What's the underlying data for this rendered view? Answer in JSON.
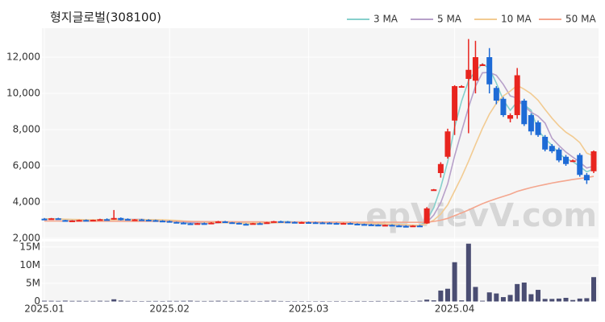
{
  "chart_data": {
    "type": "candlestick",
    "title": "형지글로벌(308100)",
    "watermark": "epVievV.com",
    "categories": [
      "2025.01",
      null,
      null,
      null,
      null,
      null,
      null,
      null,
      null,
      null,
      null,
      null,
      null,
      null,
      null,
      null,
      null,
      null,
      "2025.02",
      null,
      null,
      null,
      null,
      null,
      null,
      null,
      null,
      null,
      null,
      null,
      null,
      null,
      null,
      null,
      null,
      null,
      null,
      null,
      "2025.03",
      null,
      null,
      null,
      null,
      null,
      null,
      null,
      null,
      null,
      null,
      null,
      null,
      null,
      null,
      null,
      null,
      null,
      null,
      null,
      null,
      "2025.04",
      null,
      null,
      null,
      null,
      null,
      null,
      null,
      null,
      null,
      null,
      null,
      null,
      null,
      null,
      null,
      null,
      null,
      null,
      null,
      null
    ],
    "open": [
      3080,
      3050,
      3100,
      3000,
      2950,
      2980,
      3010,
      2990,
      3020,
      3050,
      3030,
      3120,
      3060,
      3030,
      3040,
      3020,
      3000,
      2970,
      2950,
      2900,
      2860,
      2820,
      2780,
      2830,
      2820,
      2860,
      2930,
      2880,
      2850,
      2790,
      2770,
      2830,
      2810,
      2880,
      2940,
      2920,
      2900,
      2880,
      2890,
      2880,
      2870,
      2860,
      2840,
      2820,
      2840,
      2800,
      2780,
      2760,
      2750,
      2720,
      2740,
      2700,
      2680,
      2660,
      2700,
      2820,
      4700,
      5600,
      6500,
      8500,
      10400,
      10800,
      10700,
      11600,
      12000,
      10300,
      9700,
      8600,
      8800,
      9600,
      8800,
      8400,
      7600,
      7100,
      6900,
      6500,
      6300,
      6600,
      5500,
      5700
    ],
    "high": [
      3120,
      3120,
      3130,
      3020,
      3000,
      3030,
      3040,
      3030,
      3080,
      3100,
      3560,
      3150,
      3100,
      3060,
      3070,
      3050,
      3030,
      3000,
      2980,
      2920,
      2900,
      2850,
      2850,
      2870,
      2890,
      2960,
      2960,
      2900,
      2870,
      2830,
      2850,
      2870,
      2900,
      2960,
      2970,
      2950,
      2930,
      2910,
      2920,
      2910,
      2900,
      2890,
      2870,
      2860,
      2870,
      2830,
      2810,
      2800,
      2780,
      2760,
      2770,
      2740,
      2720,
      2720,
      2740,
      3720,
      4720,
      6200,
      8050,
      10450,
      10450,
      13000,
      12900,
      11650,
      12500,
      10400,
      9800,
      8900,
      11400,
      9700,
      8900,
      8500,
      7700,
      7200,
      7000,
      6600,
      6350,
      6700,
      5600,
      6850
    ],
    "low": [
      3040,
      3030,
      3060,
      2920,
      2930,
      2960,
      2980,
      2970,
      3000,
      3010,
      3020,
      2980,
      3010,
      3000,
      3010,
      2990,
      2950,
      2930,
      2880,
      2840,
      2800,
      2740,
      2760,
      2800,
      2800,
      2840,
      2850,
      2820,
      2760,
      2740,
      2760,
      2800,
      2800,
      2870,
      2900,
      2880,
      2870,
      2860,
      2860,
      2850,
      2840,
      2830,
      2800,
      2790,
      2790,
      2760,
      2740,
      2730,
      2700,
      2690,
      2690,
      2660,
      2640,
      2640,
      2650,
      2800,
      4650,
      5350,
      6400,
      7700,
      10350,
      7800,
      10000,
      11550,
      10000,
      9400,
      8700,
      8400,
      8600,
      8200,
      7700,
      7600,
      6800,
      6700,
      6200,
      6000,
      6250,
      5400,
      5000,
      5600
    ],
    "close": [
      3060,
      3100,
      3070,
      2950,
      2980,
      3010,
      2990,
      3020,
      3050,
      3030,
      3120,
      3000,
      3030,
      3040,
      3020,
      3000,
      2970,
      2950,
      2900,
      2860,
      2820,
      2780,
      2830,
      2820,
      2860,
      2930,
      2880,
      2850,
      2790,
      2770,
      2830,
      2810,
      2880,
      2940,
      2920,
      2900,
      2880,
      2890,
      2880,
      2870,
      2860,
      2840,
      2820,
      2840,
      2800,
      2780,
      2760,
      2750,
      2720,
      2740,
      2700,
      2680,
      2660,
      2700,
      2680,
      3650,
      4700,
      6100,
      7900,
      10400,
      10400,
      11300,
      12000,
      11600,
      10500,
      9600,
      8800,
      8800,
      11000,
      8300,
      7900,
      7700,
      6900,
      6800,
      6300,
      6100,
      6300,
      5500,
      5200,
      6800
    ],
    "up_color": "#e8251f",
    "down_color": "#1e6bd6",
    "ylim": [
      2000,
      13600
    ],
    "yticks": [
      {
        "value": 2000,
        "label": "2,000"
      },
      {
        "value": 4000,
        "label": "4,000"
      },
      {
        "value": 6000,
        "label": "6,000"
      },
      {
        "value": 8000,
        "label": "8,000"
      },
      {
        "value": 10000,
        "label": "10,000"
      },
      {
        "value": 12000,
        "label": "12,000"
      }
    ],
    "series": [
      {
        "name": "3 MA",
        "color": "#86d0cc",
        "values": [
          3070,
          3080,
          3077,
          3040,
          3000,
          2980,
          2993,
          3007,
          3020,
          3033,
          3067,
          3050,
          3050,
          3023,
          3030,
          3020,
          2997,
          2973,
          2940,
          2903,
          2860,
          2820,
          2810,
          2810,
          2837,
          2870,
          2890,
          2887,
          2840,
          2803,
          2797,
          2803,
          2840,
          2877,
          2913,
          2920,
          2900,
          2890,
          2883,
          2880,
          2870,
          2857,
          2840,
          2833,
          2820,
          2807,
          2780,
          2763,
          2743,
          2737,
          2720,
          2707,
          2680,
          2680,
          2680,
          3010,
          3680,
          4817,
          6233,
          8133,
          9567,
          10700,
          11233,
          11633,
          11367,
          10567,
          9633,
          9067,
          9533,
          9367,
          9067,
          7967,
          7500,
          7133,
          6667,
          6400,
          6233,
          5967,
          5667,
          5833
        ]
      },
      {
        "name": "5 MA",
        "color": "#b7a0c9",
        "values": [
          3060,
          3070,
          3070,
          3050,
          3030,
          3020,
          3000,
          2990,
          3010,
          3020,
          3040,
          3044,
          3046,
          3044,
          3048,
          3018,
          3012,
          2996,
          2968,
          2936,
          2900,
          2862,
          2838,
          2822,
          2822,
          2844,
          2862,
          2866,
          2866,
          2844,
          2824,
          2816,
          2816,
          2844,
          2876,
          2890,
          2904,
          2906,
          2894,
          2882,
          2876,
          2868,
          2852,
          2846,
          2832,
          2816,
          2800,
          2786,
          2762,
          2750,
          2734,
          2718,
          2700,
          2696,
          2684,
          2874,
          3278,
          3966,
          5006,
          6550,
          7900,
          9220,
          10400,
          11140,
          11160,
          11000,
          10500,
          9860,
          9740,
          9300,
          8960,
          8740,
          8360,
          7520,
          7120,
          6760,
          6480,
          6200,
          5880,
          5980
        ]
      },
      {
        "name": "10 MA",
        "color": "#f2cb92",
        "values": [
          3070,
          3070,
          3065,
          3055,
          3045,
          3035,
          3025,
          3020,
          3015,
          3026,
          3033,
          3023,
          3018,
          3027,
          3031,
          3030,
          3026,
          3019,
          3004,
          2985,
          2955,
          2933,
          2913,
          2891,
          2875,
          2868,
          2859,
          2849,
          2838,
          2833,
          2833,
          2836,
          2841,
          2857,
          2866,
          2863,
          2863,
          2867,
          2876,
          2885,
          2890,
          2891,
          2885,
          2875,
          2863,
          2851,
          2840,
          2827,
          2811,
          2796,
          2780,
          2764,
          2748,
          2734,
          2722,
          2804,
          2998,
          3333,
          3851,
          4617,
          5387,
          6249,
          7183,
          8073,
          8855,
          9450,
          9860,
          10130,
          10440,
          10230,
          9980,
          9620,
          9110,
          8630,
          8210,
          7860,
          7610,
          7280,
          6700,
          6550
        ]
      },
      {
        "name": "50 MA",
        "color": "#f4a68e",
        "values": [
          2950,
          2950,
          2949,
          2948,
          2947,
          2946,
          2945,
          2944,
          2943,
          2942,
          2941,
          2940,
          2939,
          2938,
          2937,
          2936,
          2935,
          2934,
          2932,
          2930,
          2928,
          2926,
          2924,
          2922,
          2920,
          2918,
          2916,
          2914,
          2912,
          2910,
          2908,
          2906,
          2904,
          2902,
          2900,
          2899,
          2898,
          2897,
          2896,
          2895,
          2894,
          2893,
          2892,
          2891,
          2890,
          2889,
          2888,
          2887,
          2886,
          2885,
          2884,
          2883,
          2882,
          2881,
          2880,
          2890,
          2930,
          3000,
          3100,
          3250,
          3400,
          3560,
          3740,
          3910,
          4060,
          4190,
          4310,
          4430,
          4590,
          4700,
          4800,
          4890,
          4970,
          5050,
          5120,
          5180,
          5250,
          5300,
          5350,
          5420
        ]
      }
    ],
    "volume": {
      "color": "#4a4d72",
      "values": [
        200000,
        180000,
        150000,
        220000,
        160000,
        170000,
        140000,
        150000,
        190000,
        160000,
        600000,
        250000,
        150000,
        120000,
        110000,
        130000,
        140000,
        120000,
        160000,
        150000,
        170000,
        210000,
        140000,
        130000,
        150000,
        190000,
        140000,
        130000,
        170000,
        150000,
        140000,
        120000,
        180000,
        200000,
        130000,
        110000,
        100000,
        100000,
        90000,
        100000,
        110000,
        90000,
        120000,
        100000,
        110000,
        130000,
        120000,
        110000,
        140000,
        100000,
        120000,
        150000,
        130000,
        110000,
        200000,
        500000,
        300000,
        3000000,
        3500000,
        10800000,
        300000,
        15900000,
        4000000,
        200000,
        2500000,
        2200000,
        1200000,
        1800000,
        4800000,
        5200000,
        2000000,
        3200000,
        700000,
        700000,
        800000,
        1000000,
        400000,
        800000,
        900000,
        6700000
      ],
      "ylim": [
        0,
        16500000
      ],
      "yticks": [
        0,
        {
          "value": 5000000,
          "label": "5M"
        },
        {
          "value": 10000000,
          "label": "10M"
        },
        {
          "value": 15000000,
          "label": "15M"
        }
      ]
    },
    "grid": true
  }
}
